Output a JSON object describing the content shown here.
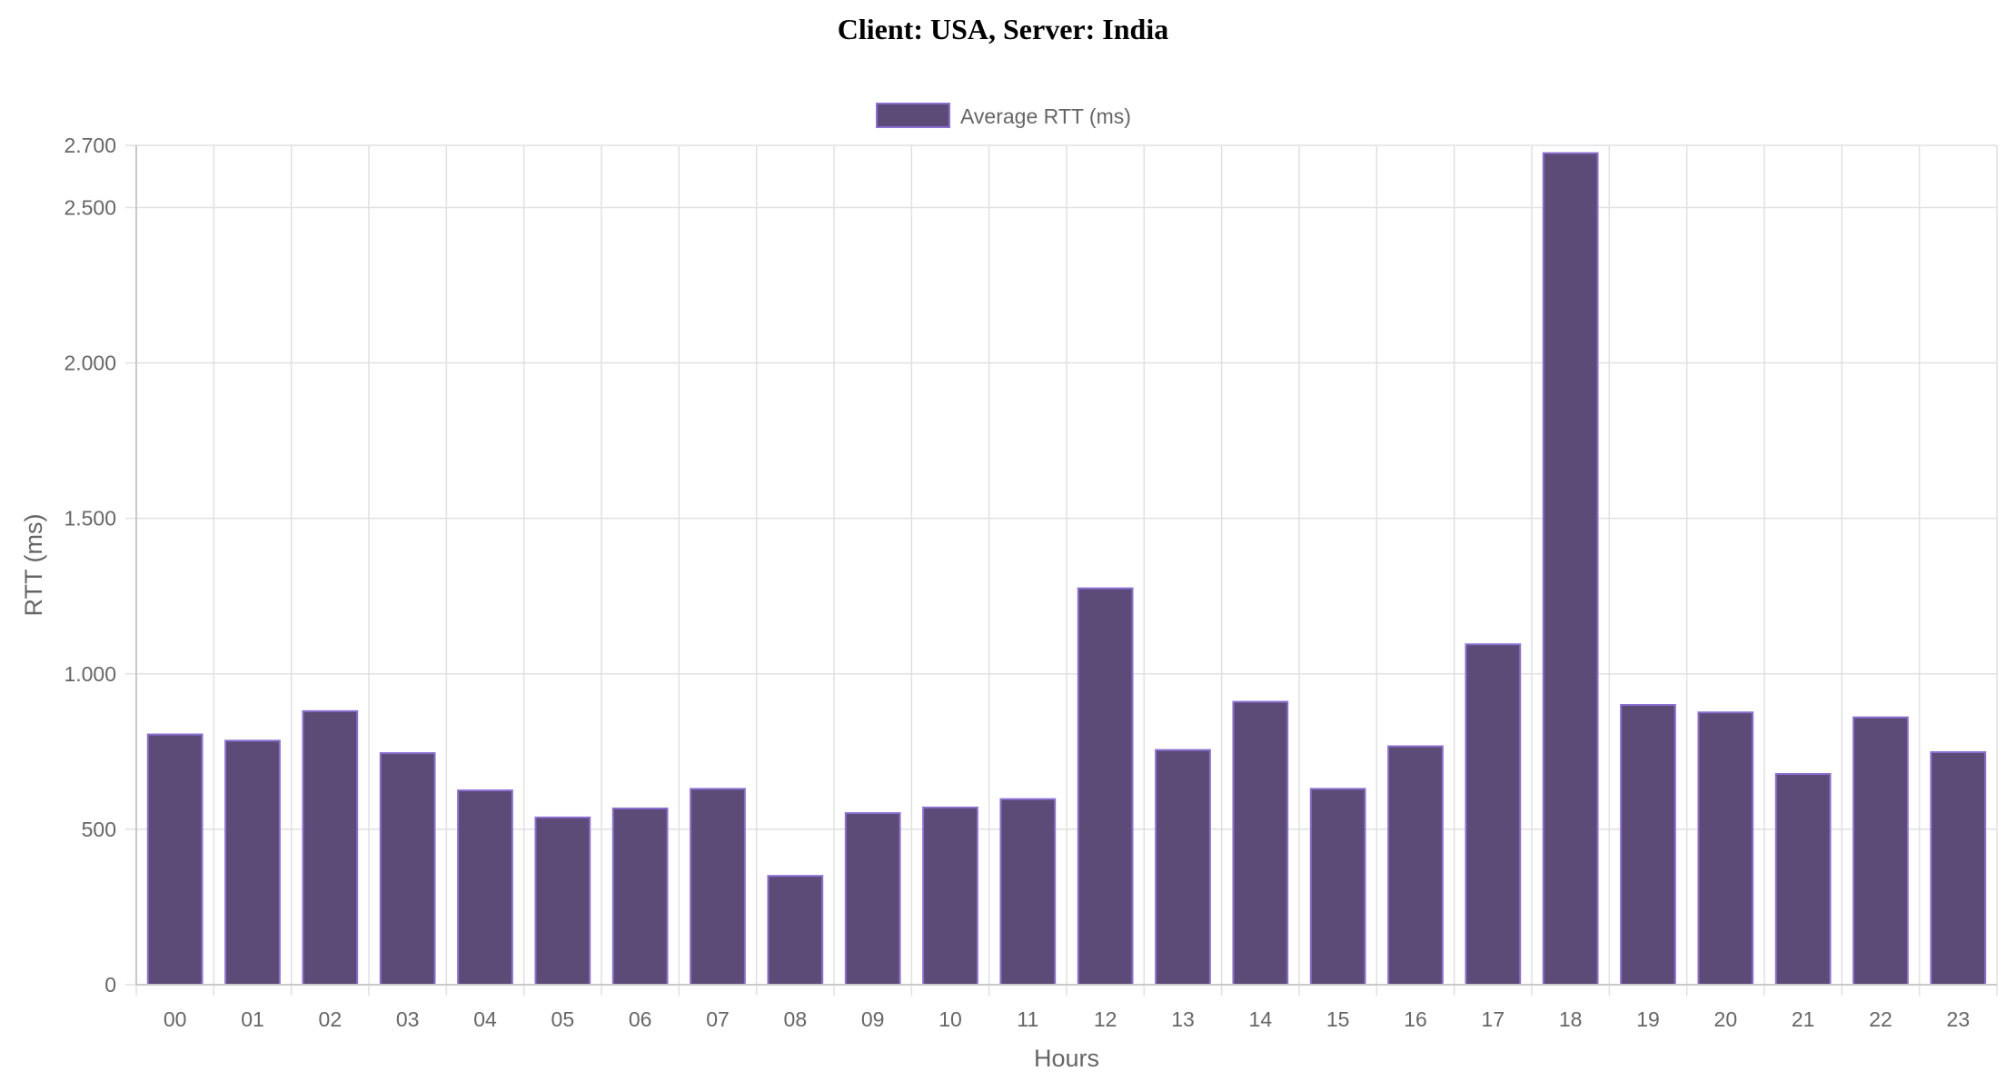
{
  "chart_data": {
    "type": "bar",
    "title": "Client: USA, Server: India",
    "xlabel": "Hours",
    "ylabel": "RTT (ms)",
    "legend": {
      "position": "top",
      "entries": [
        "Average RTT (ms)"
      ]
    },
    "grid": true,
    "categories": [
      "00",
      "01",
      "02",
      "03",
      "04",
      "05",
      "06",
      "07",
      "08",
      "09",
      "10",
      "11",
      "12",
      "13",
      "14",
      "15",
      "16",
      "17",
      "18",
      "19",
      "20",
      "21",
      "22",
      "23"
    ],
    "series": [
      {
        "name": "Average RTT (ms)",
        "color": "#5c4a77",
        "border_color": "#8a6fd1",
        "values": [
          805,
          785,
          880,
          745,
          625,
          538,
          567,
          630,
          350,
          552,
          570,
          597,
          1275,
          755,
          910,
          630,
          767,
          1095,
          2675,
          900,
          876,
          678,
          860,
          748
        ]
      }
    ],
    "ylim": [
      0,
      2700
    ],
    "yticks": [
      0,
      500,
      1000,
      1500,
      2000,
      2500,
      2700
    ],
    "ytick_labels": [
      "0",
      "500",
      "1.000",
      "1.500",
      "2.000",
      "2.500",
      "2.700"
    ]
  }
}
